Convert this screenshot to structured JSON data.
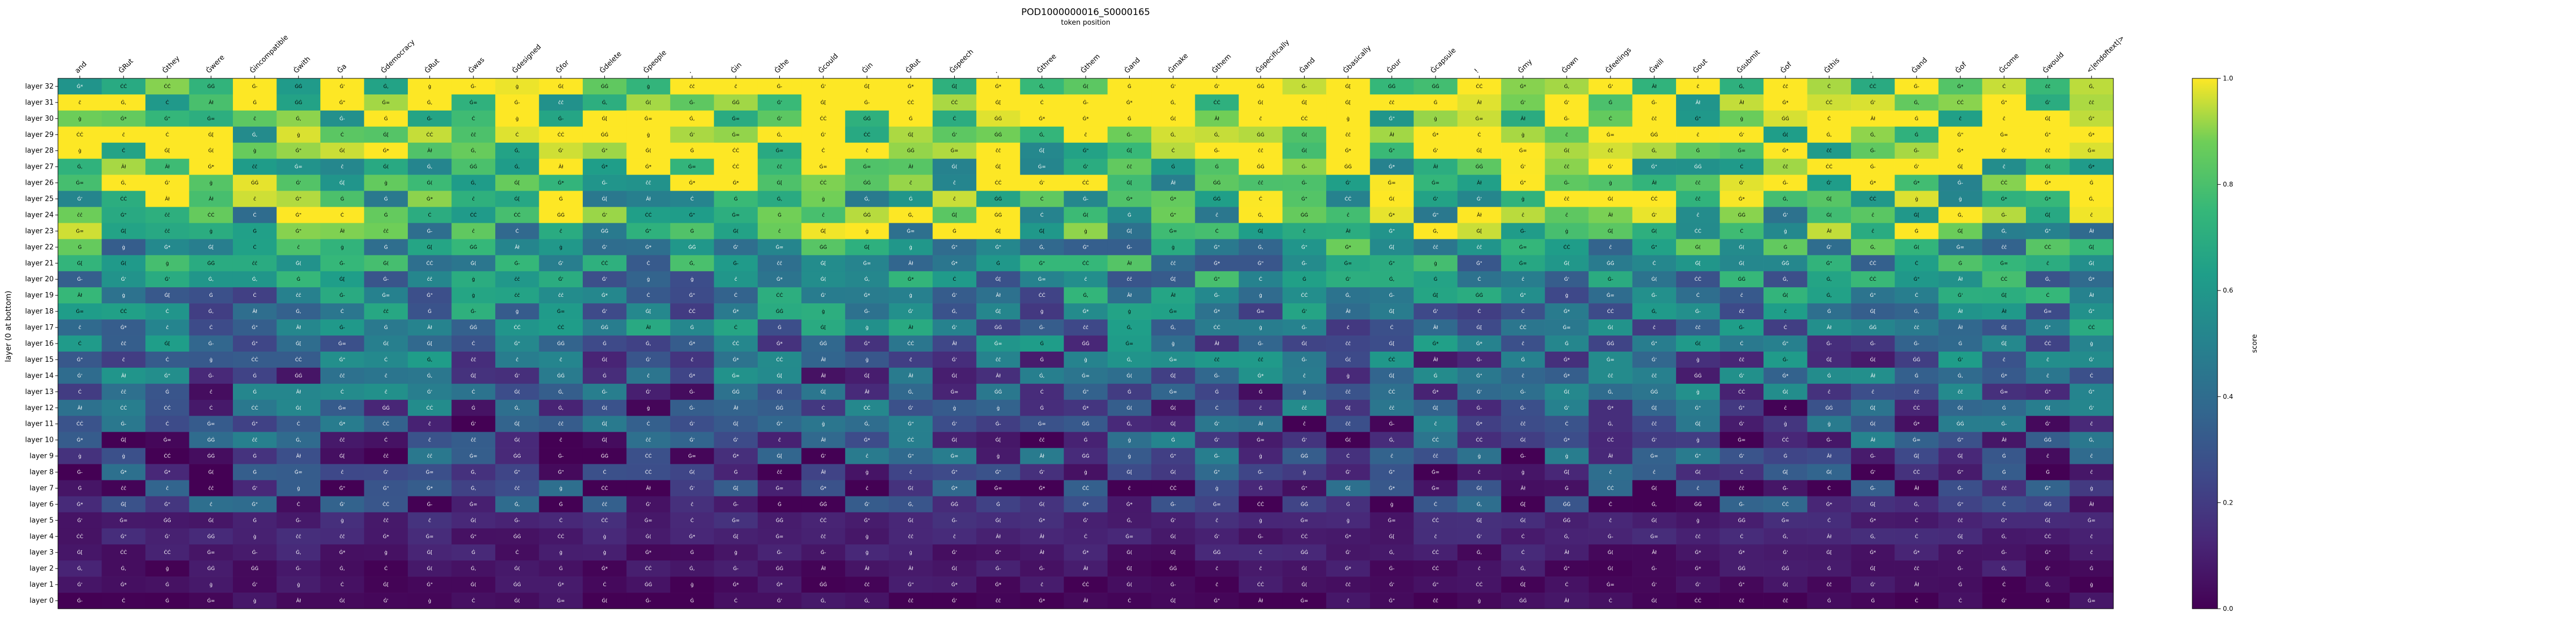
{
  "chart_data": {
    "type": "heatmap",
    "title": "POD1000000016_S0000165",
    "x_axis_label": "token position",
    "ylabel": "layer (0 at bottom)",
    "colorbar_label": "score",
    "colorbar_ticks": [
      "0.0",
      "0.2",
      "0.4",
      "0.6",
      "0.8",
      "1.0"
    ],
    "colormap": "viridis",
    "value_range": [
      0,
      1
    ],
    "x_tokens": [
      "and",
      "ĠRut",
      "Ġthey",
      "Ġwere",
      "Ġincompatible",
      "Ġwith",
      "Ġa",
      "Ġdemocracy",
      "ĠRut",
      "Ġwas",
      "Ġdesigned",
      "Ġfor",
      "Ġdelete",
      "Ġpeople",
      ".",
      "Ġin",
      "Ġthe",
      "Ġcould",
      "Ġin",
      "ĠRut",
      "Ġspeech",
      ".",
      "Ġthree",
      "Ġthem",
      "Ġand",
      "Ġmake",
      "Ġthem",
      "Ġspecifically",
      "Ġand",
      "Ġbasically",
      "Ġour",
      "Ġcapsule",
      "!",
      "Ġmy",
      "Ġown",
      "Ġfeelings",
      "Ġwill",
      "Ġout",
      "Ġsubmit",
      "Ġof",
      "Ġthis",
      ".",
      "Ġand",
      "Ġof",
      "Ġcome",
      "Ġwould",
      "<|endoftext|>"
    ],
    "y_layers": [
      "layer 32",
      "layer 31",
      "layer 30",
      "layer 29",
      "layer 28",
      "layer 27",
      "layer 26",
      "layer 25",
      "layer 24",
      "layer 23",
      "layer 22",
      "layer 21",
      "layer 20",
      "layer 19",
      "layer 18",
      "layer 17",
      "layer 16",
      "layer 15",
      "layer 14",
      "layer 13",
      "layer 12",
      "layer 11",
      "layer 10",
      "layer 9",
      "layer 8",
      "layer 7",
      "layer 6",
      "layer 5",
      "layer 4",
      "layer 3",
      "layer 2",
      "layer 1",
      "layer 0"
    ],
    "cell_tokens": [
      "ĉ",
      "Ċ",
      "Ġ",
      "ĊĊ",
      "Âł",
      "Ġ(",
      "Ġ\"",
      "ĉĉ",
      "ġ",
      "Ġ[",
      "ĠĠ",
      "Ġ=",
      "Ġ*",
      "Ġ,",
      "Ġ-",
      "Ġ'"
    ],
    "scale_top_layers": [
      0.86,
      0.84,
      0.82,
      0.8,
      0.78,
      0.75,
      0.72,
      0.7,
      0.67,
      0.64,
      0.6,
      0.56,
      0.52,
      0.48,
      0.45,
      0.42,
      0.38,
      0.35,
      0.32,
      0.3,
      0.28,
      0.26,
      0.24,
      0.21,
      0.18,
      0.16,
      0.14,
      0.12,
      0.1,
      0.08,
      0.06,
      0.04,
      0.02
    ]
  }
}
